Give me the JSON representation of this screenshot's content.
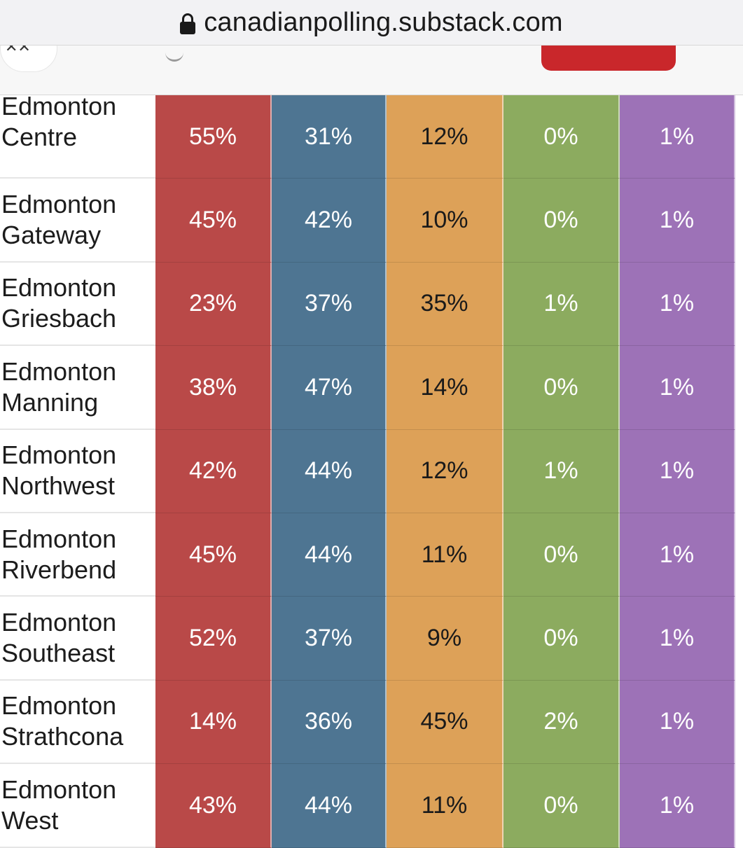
{
  "browser": {
    "url": "canadianpolling.substack.com"
  },
  "colors": {
    "col1": "#b94948",
    "col2": "#4e7592",
    "col3": "#dda158",
    "col4": "#8cab5f",
    "col5": "#9d72b7",
    "col1_text": "#ffffff",
    "col2_text": "#ffffff",
    "col3_text": "#1a1a1a",
    "col4_text": "#ffffff",
    "col5_text": "#ffffff"
  },
  "table": {
    "rows": [
      {
        "line1": "Edmonton",
        "line2": "Centre",
        "values": [
          "55%",
          "31%",
          "12%",
          "0%",
          "1%"
        ]
      },
      {
        "line1": "Edmonton",
        "line2": "Gateway",
        "values": [
          "45%",
          "42%",
          "10%",
          "0%",
          "1%"
        ]
      },
      {
        "line1": "Edmonton",
        "line2": "Griesbach",
        "values": [
          "23%",
          "37%",
          "35%",
          "1%",
          "1%"
        ]
      },
      {
        "line1": "Edmonton",
        "line2": "Manning",
        "values": [
          "38%",
          "47%",
          "14%",
          "0%",
          "1%"
        ]
      },
      {
        "line1": "Edmonton",
        "line2": "Northwest",
        "values": [
          "42%",
          "44%",
          "12%",
          "1%",
          "1%"
        ]
      },
      {
        "line1": "Edmonton",
        "line2": "Riverbend",
        "values": [
          "45%",
          "44%",
          "11%",
          "0%",
          "1%"
        ]
      },
      {
        "line1": "Edmonton",
        "line2": "Southeast",
        "values": [
          "52%",
          "37%",
          "9%",
          "0%",
          "1%"
        ]
      },
      {
        "line1": "Edmonton",
        "line2": "Strathcona",
        "values": [
          "14%",
          "36%",
          "45%",
          "2%",
          "1%"
        ]
      },
      {
        "line1": "Edmonton",
        "line2": "West",
        "values": [
          "43%",
          "44%",
          "11%",
          "0%",
          "1%"
        ]
      }
    ]
  }
}
